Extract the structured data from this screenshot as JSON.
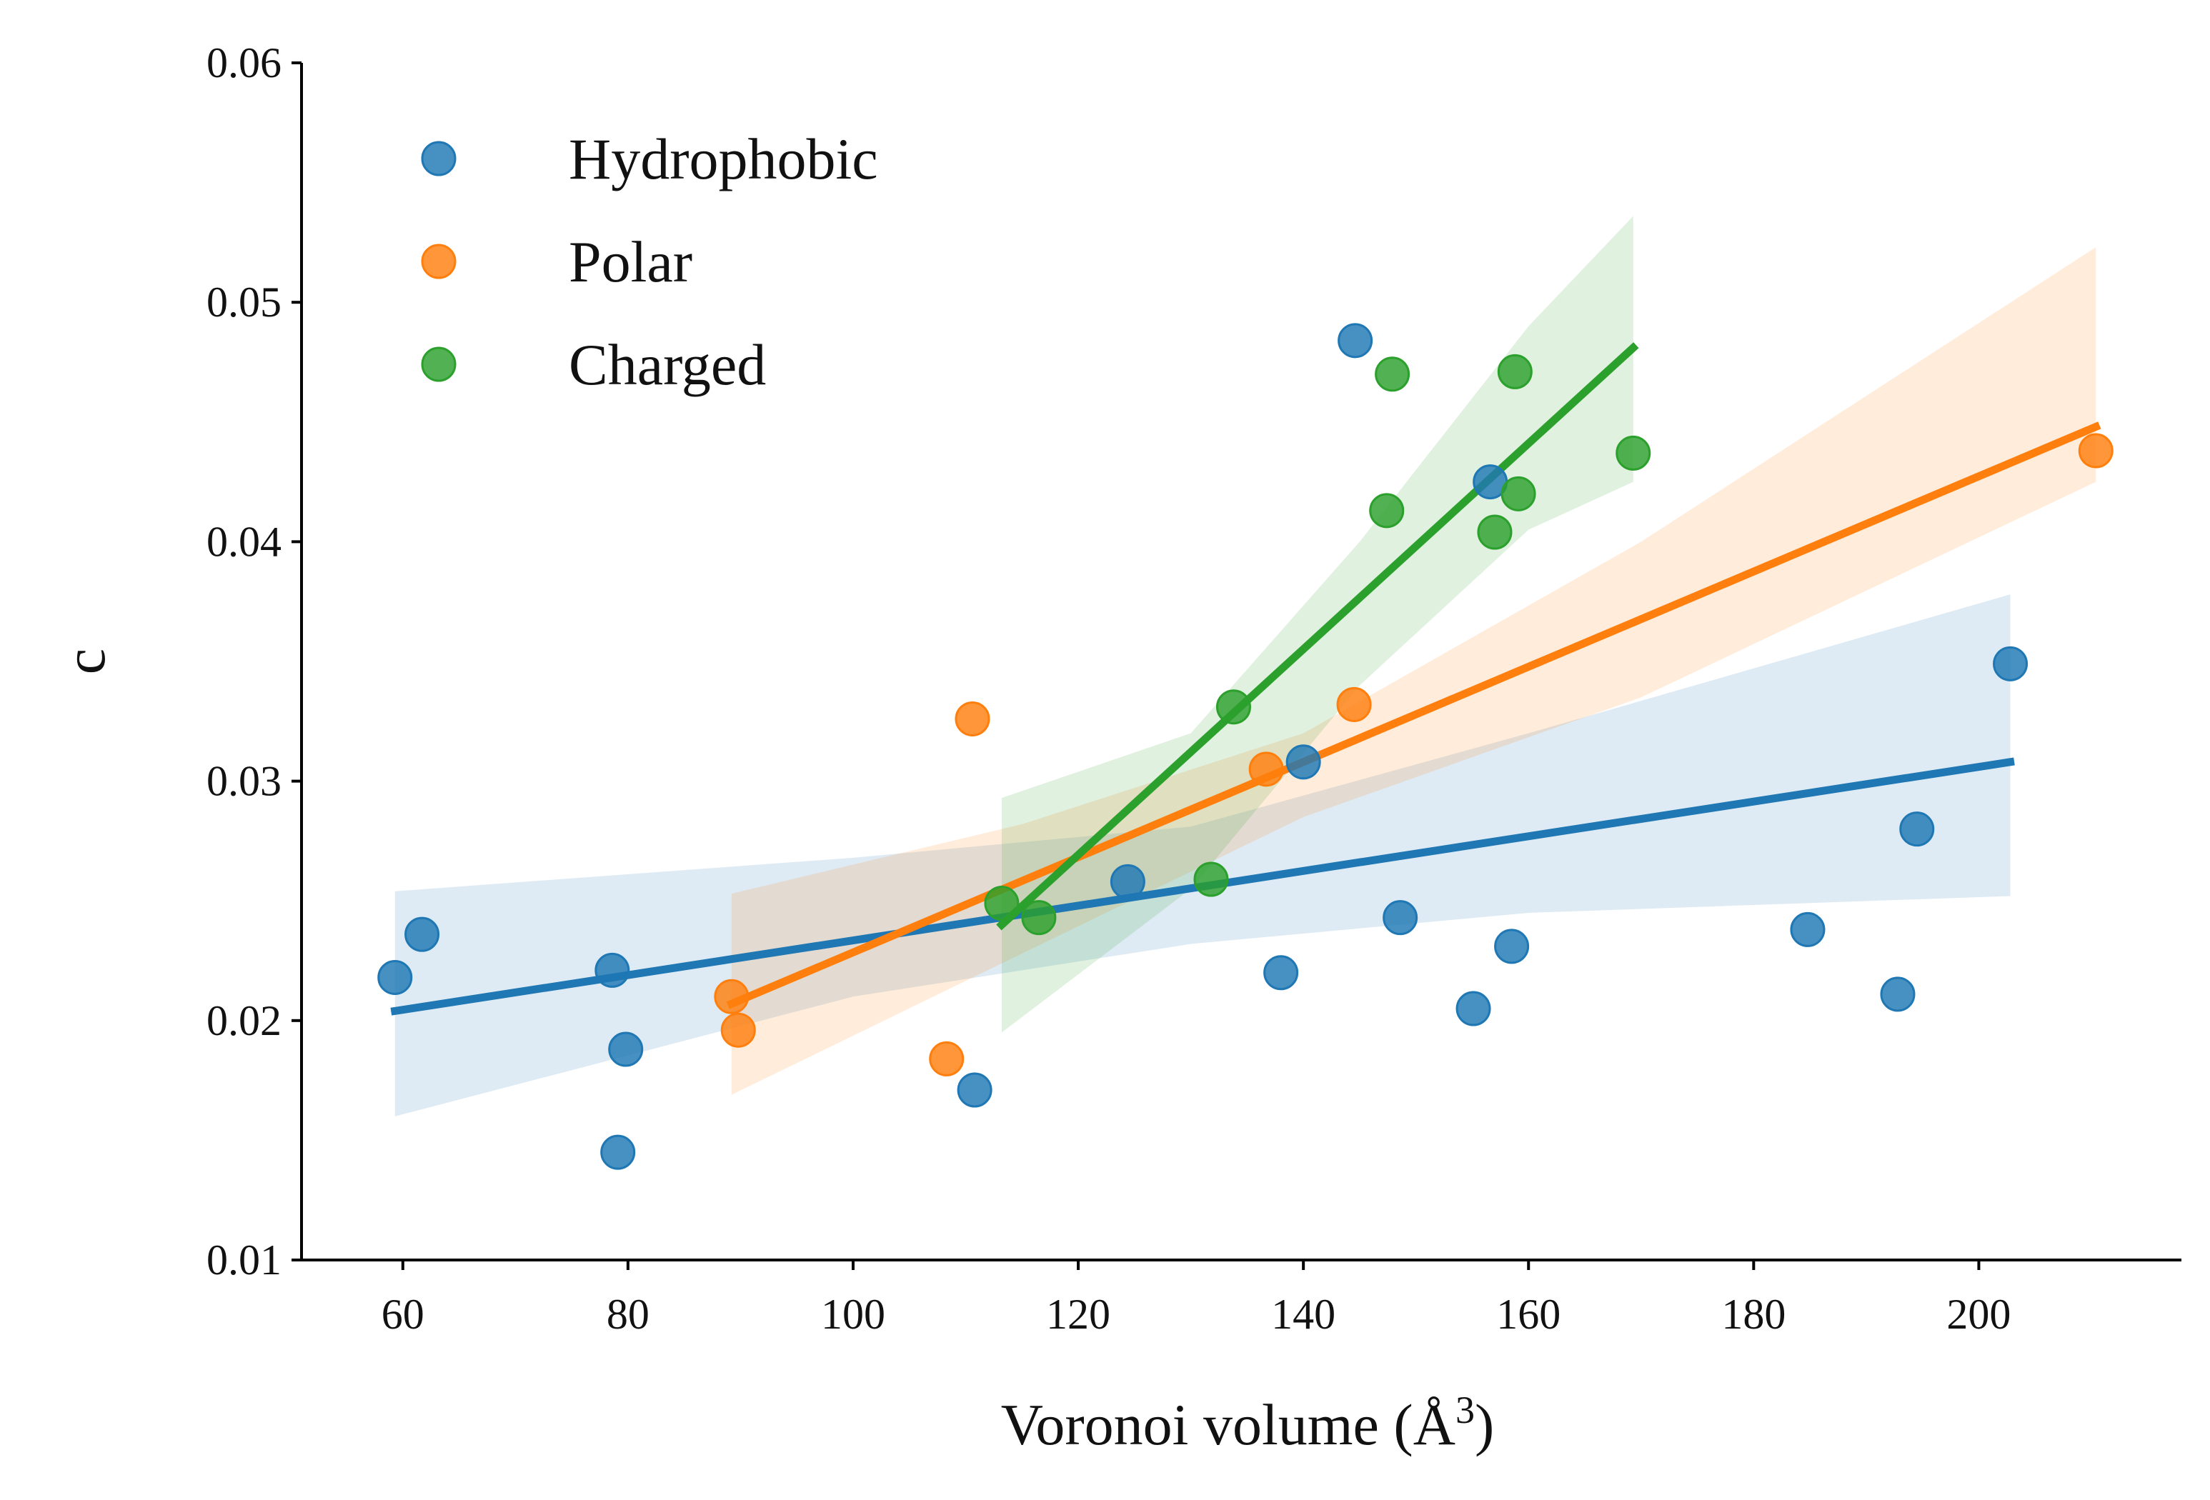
{
  "chart_data": {
    "type": "scatter",
    "xlabel": "Voronoi volume (Å",
    "xlabel_sup": "3",
    "xlabel_close": ")",
    "ylabel": "c",
    "xlim": [
      51,
      218
    ],
    "ylim": [
      0.01,
      0.06
    ],
    "xticks": [
      60,
      80,
      100,
      120,
      140,
      160,
      180,
      200
    ],
    "yticks": [
      0.01,
      0.02,
      0.03,
      0.04,
      0.05,
      0.06
    ],
    "xtick_labels": [
      "60",
      "80",
      "100",
      "120",
      "140",
      "160",
      "180",
      "200"
    ],
    "ytick_labels": [
      "0.01",
      "0.02",
      "0.03",
      "0.04",
      "0.05",
      "0.06"
    ],
    "grid": false,
    "legend_position": "top-left",
    "series": [
      {
        "name": "Hydrophobic",
        "color": "#1f77b4",
        "points": [
          [
            59.3,
            0.0218
          ],
          [
            61.7,
            0.0236
          ],
          [
            78.6,
            0.0221
          ],
          [
            79.1,
            0.0145
          ],
          [
            79.8,
            0.0188
          ],
          [
            110.8,
            0.0171
          ],
          [
            124.4,
            0.0258
          ],
          [
            138.0,
            0.022
          ],
          [
            140.0,
            0.0308
          ],
          [
            144.6,
            0.0484
          ],
          [
            148.6,
            0.0243
          ],
          [
            155.1,
            0.0205
          ],
          [
            156.6,
            0.0425
          ],
          [
            158.5,
            0.0231
          ],
          [
            184.8,
            0.0238
          ],
          [
            192.8,
            0.0211
          ],
          [
            194.5,
            0.028
          ],
          [
            202.8,
            0.0349
          ]
        ],
        "fit": {
          "x": [
            59.3,
            202.8
          ],
          "y": [
            0.0204,
            0.0308
          ]
        },
        "ci_upper": [
          [
            59.3,
            0.0254
          ],
          [
            100,
            0.0268
          ],
          [
            130,
            0.0281
          ],
          [
            160,
            0.032
          ],
          [
            202.8,
            0.0378
          ]
        ],
        "ci_lower": [
          [
            59.3,
            0.016
          ],
          [
            100,
            0.021
          ],
          [
            130,
            0.0232
          ],
          [
            160,
            0.0245
          ],
          [
            202.8,
            0.0252
          ]
        ]
      },
      {
        "name": "Polar",
        "color": "#ff7f0e",
        "points": [
          [
            89.2,
            0.021
          ],
          [
            89.8,
            0.0196
          ],
          [
            108.3,
            0.0184
          ],
          [
            110.6,
            0.0326
          ],
          [
            136.7,
            0.0305
          ],
          [
            144.5,
            0.0332
          ],
          [
            210.4,
            0.0438
          ]
        ],
        "fit": {
          "x": [
            89.2,
            210.4
          ],
          "y": [
            0.0207,
            0.0448
          ]
        },
        "ci_upper": [
          [
            89.2,
            0.0253
          ],
          [
            115,
            0.0282
          ],
          [
            140,
            0.032
          ],
          [
            170,
            0.04
          ],
          [
            210.4,
            0.0523
          ]
        ],
        "ci_lower": [
          [
            89.2,
            0.0169
          ],
          [
            115,
            0.0228
          ],
          [
            140,
            0.0285
          ],
          [
            170,
            0.0335
          ],
          [
            210.4,
            0.0425
          ]
        ]
      },
      {
        "name": "Charged",
        "color": "#2ca02c",
        "points": [
          [
            113.2,
            0.0249
          ],
          [
            116.5,
            0.0243
          ],
          [
            131.8,
            0.0259
          ],
          [
            133.8,
            0.0331
          ],
          [
            147.4,
            0.0413
          ],
          [
            147.9,
            0.047
          ],
          [
            157.0,
            0.0404
          ],
          [
            158.8,
            0.0471
          ],
          [
            159.1,
            0.042
          ],
          [
            169.3,
            0.0437
          ]
        ],
        "fit": {
          "x": [
            113.2,
            169.3
          ],
          "y": [
            0.024,
            0.0481
          ]
        },
        "ci_upper": [
          [
            113.2,
            0.0293
          ],
          [
            130,
            0.032
          ],
          [
            145,
            0.04
          ],
          [
            160,
            0.049
          ],
          [
            169.3,
            0.0536
          ]
        ],
        "ci_lower": [
          [
            113.2,
            0.0195
          ],
          [
            130,
            0.0255
          ],
          [
            145,
            0.034
          ],
          [
            160,
            0.0405
          ],
          [
            169.3,
            0.0425
          ]
        ]
      }
    ]
  }
}
